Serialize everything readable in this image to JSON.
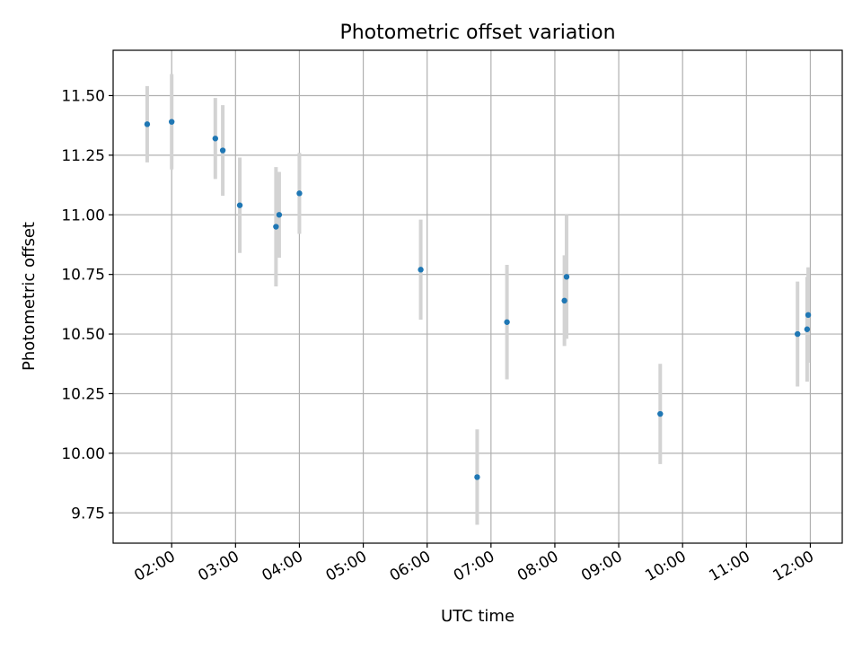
{
  "chart_data": {
    "type": "scatter",
    "title": "Photometric offset variation",
    "xlabel": "UTC time",
    "ylabel": "Photometric offset",
    "x_axis_kind": "time",
    "xlim": [
      "01:05",
      "12:30"
    ],
    "ylim": [
      9.623,
      11.69
    ],
    "x_ticks": [
      "02:00",
      "03:00",
      "04:00",
      "05:00",
      "06:00",
      "07:00",
      "08:00",
      "09:00",
      "10:00",
      "11:00",
      "12:00"
    ],
    "y_ticks": [
      "9.75",
      "10.00",
      "10.25",
      "10.50",
      "10.75",
      "11.00",
      "11.25",
      "11.50"
    ],
    "grid": true,
    "marker_color": "#1f77b4",
    "errorbar_color": "#d3d3d3",
    "points": [
      {
        "x": "01:37",
        "y": 11.38,
        "err": 0.16
      },
      {
        "x": "02:00",
        "y": 11.39,
        "err": 0.2
      },
      {
        "x": "02:41",
        "y": 11.32,
        "err": 0.17
      },
      {
        "x": "02:48",
        "y": 11.27,
        "err": 0.19
      },
      {
        "x": "03:04",
        "y": 11.04,
        "err": 0.2
      },
      {
        "x": "03:38",
        "y": 10.95,
        "err": 0.25
      },
      {
        "x": "03:41",
        "y": 11.0,
        "err": 0.18
      },
      {
        "x": "04:00",
        "y": 11.09,
        "err": 0.17
      },
      {
        "x": "05:54",
        "y": 10.77,
        "err": 0.21
      },
      {
        "x": "06:47",
        "y": 9.9,
        "err": 0.2
      },
      {
        "x": "07:15",
        "y": 10.55,
        "err": 0.24
      },
      {
        "x": "08:09",
        "y": 10.64,
        "err": 0.19
      },
      {
        "x": "08:11",
        "y": 10.74,
        "err": 0.26
      },
      {
        "x": "09:39",
        "y": 10.165,
        "err": 0.21
      },
      {
        "x": "11:48",
        "y": 10.5,
        "err": 0.22
      },
      {
        "x": "11:57",
        "y": 10.52,
        "err": 0.22
      },
      {
        "x": "11:58",
        "y": 10.58,
        "err": 0.2
      }
    ]
  }
}
